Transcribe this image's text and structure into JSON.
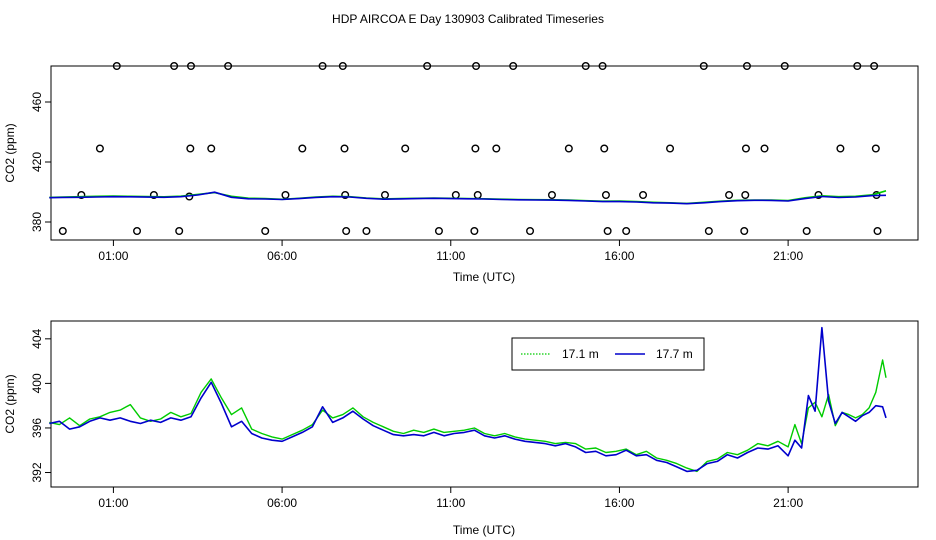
{
  "figure_title": "HDP AIRCOA E  Day 130903  Calibrated Timeseries",
  "colors": {
    "green": "#00cc00",
    "blue": "#0000cc",
    "axis": "#000000"
  },
  "chart_data": [
    {
      "type": "scatter",
      "title": "",
      "xlabel": "Time (UTC)",
      "ylabel": "CO2 (ppm)",
      "x_unit": "hours UTC",
      "xlim": [
        -0.85,
        24.85
      ],
      "ylim": [
        368,
        484
      ],
      "x_ticks": [
        1,
        6,
        11,
        16,
        21
      ],
      "x_tick_labels": [
        "01:00",
        "06:00",
        "11:00",
        "16:00",
        "21:00"
      ],
      "y_ticks": [
        380,
        420,
        460
      ],
      "y_tick_labels": [
        "380",
        "420",
        "460"
      ],
      "grid": false,
      "legend": "none",
      "series": [
        {
          "marker": "open-circle",
          "color": "#000000",
          "x": [
            -0.5,
            0.05,
            0.6,
            1.1,
            1.7,
            2.2,
            2.8,
            2.95,
            3.25,
            3.28,
            3.3,
            3.9,
            4.4,
            5.5,
            6.1,
            6.6,
            7.2,
            7.8,
            7.85,
            7.87,
            7.9,
            8.5,
            9.05,
            9.65,
            10.3,
            10.65,
            11.15,
            11.7,
            11.73,
            11.75,
            11.8,
            12.35,
            12.85,
            13.35,
            14.0,
            14.5,
            15.0,
            15.5,
            15.55,
            15.6,
            15.65,
            16.2,
            16.7,
            17.5,
            18.5,
            18.65,
            19.25,
            19.7,
            19.73,
            19.75,
            19.78,
            20.3,
            20.9,
            21.55,
            21.9,
            22.55,
            23.05,
            23.55,
            23.6,
            23.62,
            23.65
          ],
          "y": [
            374,
            398,
            429,
            484,
            374,
            398,
            484,
            374,
            397,
            429,
            484,
            429,
            484,
            374,
            398,
            429,
            484,
            484,
            429,
            398,
            374,
            374,
            398,
            429,
            484,
            374,
            398,
            374,
            429,
            484,
            398,
            429,
            484,
            374,
            398,
            429,
            484,
            484,
            429,
            398,
            374,
            374,
            398,
            429,
            484,
            374,
            398,
            374,
            398,
            429,
            484,
            429,
            484,
            374,
            398,
            429,
            484,
            484,
            429,
            398,
            374
          ]
        },
        {
          "name": "17.1 m",
          "color": "#00cc00",
          "x": [
            -0.9,
            -0.5,
            0.0,
            0.5,
            1.0,
            1.5,
            2.0,
            2.5,
            3.0,
            3.5,
            4.0,
            4.5,
            5.0,
            5.5,
            6.0,
            6.5,
            7.0,
            7.5,
            8.0,
            8.5,
            9.0,
            9.5,
            10.0,
            10.5,
            11.0,
            11.5,
            12.0,
            12.5,
            13.0,
            13.5,
            14.0,
            14.5,
            15.0,
            15.5,
            16.0,
            16.5,
            17.0,
            17.5,
            18.0,
            18.5,
            19.0,
            19.5,
            20.0,
            20.5,
            21.0,
            21.5,
            22.0,
            22.5,
            23.0,
            23.5,
            23.9
          ],
          "y": [
            396.4,
            396.6,
            396.9,
            397.1,
            397.3,
            397.1,
            397.0,
            396.8,
            397.2,
            398.4,
            399.6,
            397.1,
            395.9,
            395.6,
            395.1,
            395.8,
            396.7,
            397.1,
            396.9,
            396.0,
            395.4,
            395.6,
            395.8,
            396.0,
            395.8,
            395.7,
            395.5,
            395.2,
            395.0,
            394.9,
            394.8,
            394.6,
            394.2,
            393.9,
            394.0,
            393.6,
            393.1,
            392.8,
            392.4,
            393.1,
            393.9,
            394.5,
            394.7,
            394.6,
            394.3,
            396.1,
            397.5,
            396.9,
            397.1,
            398.1,
            400.8
          ]
        },
        {
          "name": "17.7 m",
          "color": "#0000cc",
          "x": [
            -0.9,
            -0.5,
            0.0,
            0.5,
            1.0,
            1.5,
            2.0,
            2.5,
            3.0,
            3.5,
            4.0,
            4.5,
            5.0,
            5.5,
            6.0,
            6.5,
            7.0,
            7.5,
            8.0,
            8.5,
            9.0,
            9.5,
            10.0,
            10.5,
            11.0,
            11.5,
            12.0,
            12.5,
            13.0,
            13.5,
            14.0,
            14.5,
            15.0,
            15.5,
            16.0,
            16.5,
            17.0,
            17.5,
            18.0,
            18.5,
            19.0,
            19.5,
            20.0,
            20.5,
            21.0,
            21.5,
            22.0,
            22.5,
            23.0,
            23.5,
            23.9
          ],
          "y": [
            396.2,
            396.4,
            396.5,
            396.7,
            396.9,
            396.8,
            396.6,
            396.5,
            396.9,
            398.0,
            399.9,
            396.5,
            395.5,
            395.3,
            395.0,
            395.6,
            396.4,
            396.9,
            396.7,
            395.8,
            395.2,
            395.4,
            395.6,
            395.8,
            395.6,
            395.5,
            395.3,
            395.0,
            394.8,
            394.7,
            394.6,
            394.4,
            394.0,
            393.6,
            393.6,
            393.3,
            392.8,
            392.6,
            392.2,
            392.8,
            393.6,
            394.2,
            394.5,
            394.4,
            394.0,
            395.6,
            397.0,
            396.3,
            396.7,
            397.6,
            397.8
          ]
        }
      ]
    },
    {
      "type": "line",
      "title": "",
      "xlabel": "Time (UTC)",
      "ylabel": "CO2 (ppm)",
      "x_unit": "hours UTC",
      "xlim": [
        -0.85,
        24.85
      ],
      "ylim": [
        390.7,
        405.6
      ],
      "x_ticks": [
        1,
        6,
        11,
        16,
        21
      ],
      "x_tick_labels": [
        "01:00",
        "06:00",
        "11:00",
        "16:00",
        "21:00"
      ],
      "y_ticks": [
        392,
        396,
        400,
        404
      ],
      "y_tick_labels": [
        "392",
        "396",
        "400",
        "404"
      ],
      "grid": false,
      "legend": "top-right",
      "series": [
        {
          "name": "17.1 m",
          "color": "#00cc00",
          "x": [
            -0.9,
            -0.6,
            -0.3,
            0.0,
            0.3,
            0.6,
            0.9,
            1.2,
            1.5,
            1.8,
            2.1,
            2.4,
            2.7,
            3.0,
            3.3,
            3.6,
            3.9,
            4.2,
            4.5,
            4.8,
            5.1,
            5.4,
            5.7,
            6.0,
            6.3,
            6.6,
            6.9,
            7.2,
            7.5,
            7.8,
            8.1,
            8.4,
            8.7,
            9.0,
            9.3,
            9.6,
            9.9,
            10.2,
            10.5,
            10.8,
            11.1,
            11.4,
            11.7,
            12.0,
            12.3,
            12.6,
            12.9,
            13.2,
            13.5,
            13.8,
            14.1,
            14.4,
            14.7,
            15.0,
            15.3,
            15.6,
            15.9,
            16.2,
            16.5,
            16.8,
            17.1,
            17.4,
            17.7,
            18.0,
            18.3,
            18.6,
            18.9,
            19.2,
            19.5,
            19.8,
            20.1,
            20.4,
            20.7,
            21.0,
            21.2,
            21.4,
            21.6,
            21.8,
            22.0,
            22.2,
            22.4,
            22.6,
            22.8,
            23.0,
            23.2,
            23.4,
            23.6,
            23.8,
            23.9
          ],
          "y": [
            396.5,
            396.3,
            396.9,
            396.2,
            396.8,
            397.0,
            397.4,
            397.6,
            398.1,
            396.9,
            396.6,
            396.8,
            397.4,
            397.0,
            397.3,
            399.2,
            400.4,
            398.7,
            397.2,
            397.8,
            395.9,
            395.5,
            395.2,
            395.0,
            395.4,
            395.8,
            396.3,
            397.6,
            396.9,
            397.2,
            397.8,
            397.0,
            396.5,
            396.1,
            395.7,
            395.5,
            395.8,
            395.6,
            395.9,
            395.6,
            395.7,
            395.8,
            396.0,
            395.5,
            395.3,
            395.5,
            395.2,
            395.0,
            394.9,
            394.8,
            394.6,
            394.7,
            394.6,
            394.1,
            394.2,
            393.8,
            393.9,
            394.1,
            393.6,
            393.9,
            393.3,
            393.1,
            392.8,
            392.4,
            392.1,
            393.0,
            393.2,
            393.8,
            393.6,
            394.0,
            394.6,
            394.4,
            394.8,
            394.3,
            396.3,
            394.6,
            397.8,
            398.3,
            397.0,
            399.0,
            396.2,
            397.4,
            397.2,
            396.9,
            397.2,
            397.8,
            399.2,
            402.1,
            400.5
          ]
        },
        {
          "name": "17.7 m",
          "color": "#0000cc",
          "x": [
            -0.9,
            -0.6,
            -0.3,
            0.0,
            0.3,
            0.6,
            0.9,
            1.2,
            1.5,
            1.8,
            2.1,
            2.4,
            2.7,
            3.0,
            3.3,
            3.6,
            3.9,
            4.2,
            4.5,
            4.8,
            5.1,
            5.4,
            5.7,
            6.0,
            6.3,
            6.6,
            6.9,
            7.2,
            7.5,
            7.8,
            8.1,
            8.4,
            8.7,
            9.0,
            9.3,
            9.6,
            9.9,
            10.2,
            10.5,
            10.8,
            11.1,
            11.4,
            11.7,
            12.0,
            12.3,
            12.6,
            12.9,
            13.2,
            13.5,
            13.8,
            14.1,
            14.4,
            14.7,
            15.0,
            15.3,
            15.6,
            15.9,
            16.2,
            16.5,
            16.8,
            17.1,
            17.4,
            17.7,
            18.0,
            18.3,
            18.6,
            18.9,
            19.2,
            19.5,
            19.8,
            20.1,
            20.4,
            20.7,
            21.0,
            21.2,
            21.4,
            21.6,
            21.8,
            22.0,
            22.2,
            22.4,
            22.6,
            22.8,
            23.0,
            23.2,
            23.4,
            23.6,
            23.8,
            23.9
          ],
          "y": [
            396.4,
            396.6,
            395.9,
            396.1,
            396.6,
            396.9,
            396.7,
            396.9,
            396.6,
            396.4,
            396.7,
            396.5,
            396.9,
            396.7,
            397.0,
            398.7,
            400.1,
            398.2,
            396.1,
            396.6,
            395.5,
            395.1,
            394.9,
            394.8,
            395.2,
            395.6,
            396.1,
            397.9,
            396.5,
            396.9,
            397.5,
            396.8,
            396.2,
            395.8,
            395.4,
            395.3,
            395.4,
            395.3,
            395.6,
            395.3,
            395.5,
            395.6,
            395.8,
            395.3,
            395.1,
            395.3,
            395.0,
            394.8,
            394.7,
            394.6,
            394.4,
            394.6,
            394.3,
            393.8,
            393.9,
            393.5,
            393.6,
            394.0,
            393.5,
            393.6,
            393.1,
            392.9,
            392.5,
            392.1,
            392.2,
            392.8,
            393.0,
            393.6,
            393.3,
            393.8,
            394.2,
            394.1,
            394.4,
            393.5,
            394.9,
            394.2,
            398.9,
            397.5,
            405.0,
            398.4,
            396.4,
            397.4,
            397.0,
            396.6,
            397.1,
            397.4,
            398.0,
            397.9,
            396.9
          ]
        }
      ]
    }
  ]
}
